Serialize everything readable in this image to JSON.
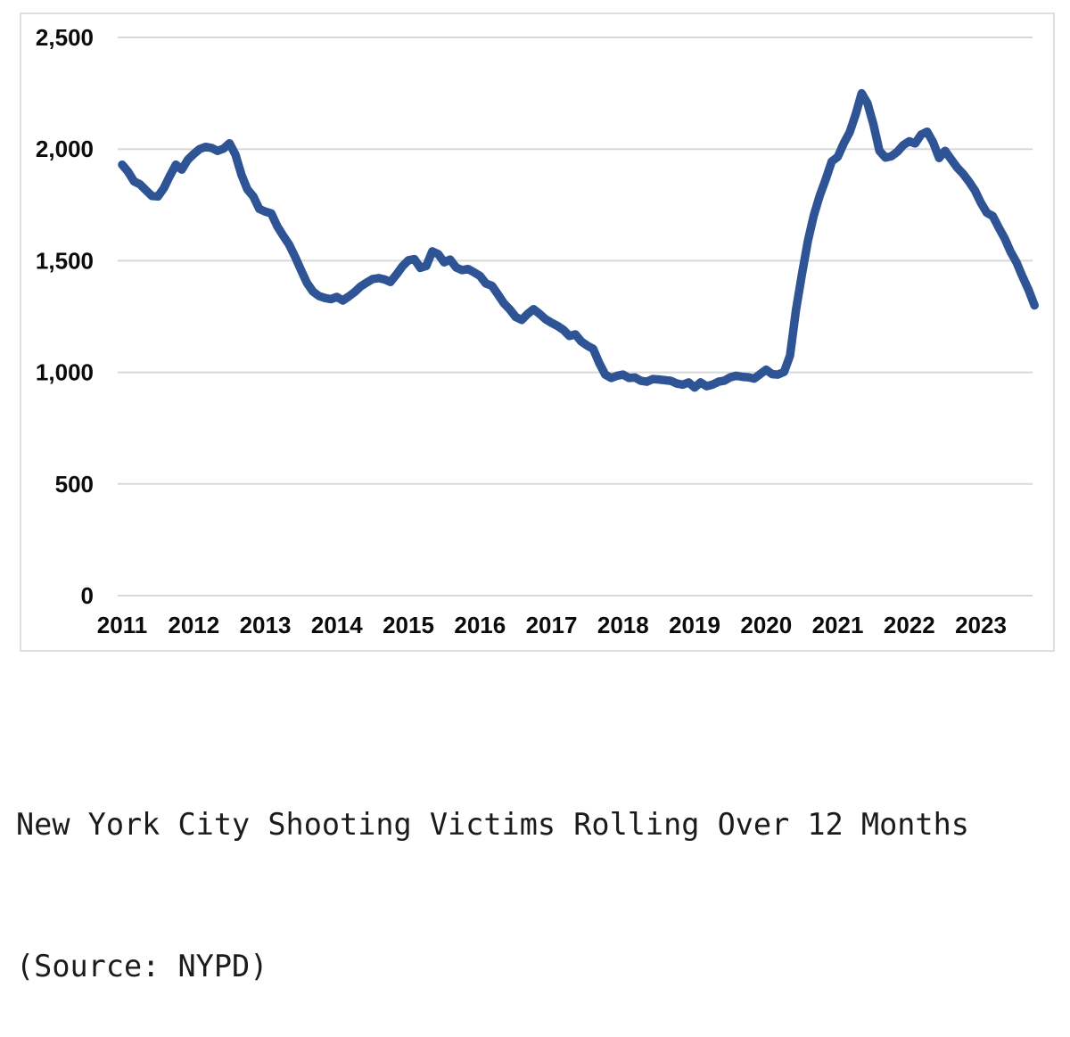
{
  "caption": {
    "line1": "New York City Shooting Victims Rolling Over 12 Months",
    "line2": "(Source: NYPD)"
  },
  "chart_data": {
    "type": "line",
    "title": "New York City Shooting Victims Rolling Over 12 Months",
    "subtitle": "(Source: NYPD)",
    "xlabel": "",
    "ylabel": "",
    "ylim": [
      0,
      2500
    ],
    "grid": "horizontal",
    "legend": "none",
    "line_color": "#2f5496",
    "y_ticks": [
      0,
      500,
      1000,
      1500,
      2000,
      2500
    ],
    "y_tick_labels": [
      "0",
      "500",
      "1,000",
      "1,500",
      "2,000",
      "2,500"
    ],
    "x_tick_labels": [
      "2011",
      "2012",
      "2013",
      "2014",
      "2015",
      "2016",
      "2017",
      "2018",
      "2019",
      "2020",
      "2021",
      "2022",
      "2023"
    ],
    "series": [
      {
        "name": "Shooting victims, 12-month rolling total",
        "start": "2011-01",
        "interval": "monthly",
        "values": [
          1930,
          1898,
          1855,
          1842,
          1815,
          1790,
          1788,
          1825,
          1880,
          1930,
          1908,
          1952,
          1978,
          2000,
          2010,
          2005,
          1992,
          2002,
          2026,
          1975,
          1885,
          1820,
          1788,
          1732,
          1720,
          1712,
          1655,
          1612,
          1572,
          1518,
          1458,
          1400,
          1362,
          1342,
          1333,
          1328,
          1338,
          1322,
          1340,
          1360,
          1385,
          1402,
          1418,
          1422,
          1416,
          1405,
          1438,
          1475,
          1502,
          1507,
          1468,
          1477,
          1542,
          1530,
          1493,
          1505,
          1470,
          1458,
          1463,
          1448,
          1432,
          1398,
          1388,
          1350,
          1310,
          1282,
          1248,
          1235,
          1262,
          1283,
          1262,
          1238,
          1222,
          1208,
          1190,
          1163,
          1170,
          1138,
          1120,
          1105,
          1042,
          990,
          975,
          985,
          990,
          975,
          977,
          962,
          958,
          970,
          968,
          965,
          962,
          950,
          945,
          955,
          932,
          955,
          938,
          945,
          958,
          963,
          978,
          985,
          980,
          978,
          972,
          992,
          1012,
          992,
          990,
          1002,
          1075,
          1280,
          1440,
          1590,
          1705,
          1792,
          1865,
          1945,
          1965,
          2025,
          2075,
          2155,
          2250,
          2205,
          2110,
          1992,
          1962,
          1968,
          1988,
          2018,
          2035,
          2025,
          2065,
          2078,
          2030,
          1960,
          1992,
          1955,
          1918,
          1890,
          1855,
          1815,
          1760,
          1715,
          1700,
          1648,
          1600,
          1540,
          1492,
          1428,
          1370,
          1300
        ]
      }
    ]
  }
}
